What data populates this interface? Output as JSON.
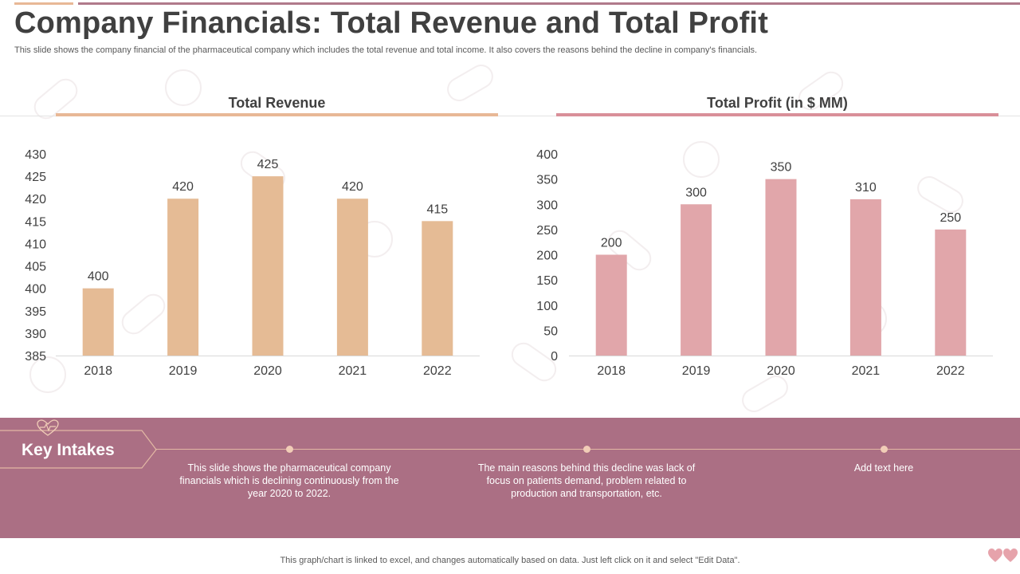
{
  "header": {
    "title": "Company Financials: Total Revenue and Total Profit",
    "subtitle": "This slide shows the company financial of the pharmaceutical company which includes the total revenue and total income. It also covers the reasons behind the decline in company's financials."
  },
  "colors": {
    "revenue_bar": "#e5bb95",
    "profit_bar": "#e1a6aa",
    "band": "#ab6f84",
    "accent_line": "#e8b896",
    "profit_line": "#d98f99"
  },
  "chart_data": [
    {
      "type": "bar",
      "title": "Total Revenue",
      "categories": [
        "2018",
        "2019",
        "2020",
        "2021",
        "2022"
      ],
      "values": [
        400,
        420,
        425,
        420,
        415
      ],
      "ylim": [
        385,
        430
      ],
      "ytick_step": 5,
      "xlabel": "",
      "ylabel": "",
      "grid": false
    },
    {
      "type": "bar",
      "title": "Total Profit (in $ MM)",
      "categories": [
        "2018",
        "2019",
        "2020",
        "2021",
        "2022"
      ],
      "values": [
        200,
        300,
        350,
        310,
        250
      ],
      "ylim": [
        0,
        400
      ],
      "ytick_step": 50,
      "xlabel": "",
      "ylabel": "",
      "grid": false
    }
  ],
  "key_intakes": {
    "label": "Key Intakes",
    "notes": [
      "This slide shows the pharmaceutical company financials which is declining continuously from the year 2020 to 2022.",
      "The main reasons behind this decline was lack of focus on patients demand, problem related to production and transportation, etc.",
      "Add text here"
    ]
  },
  "footer": {
    "text": "This graph/chart is linked to excel, and changes automatically based on data. Just left click on it and select \"Edit Data\"."
  }
}
